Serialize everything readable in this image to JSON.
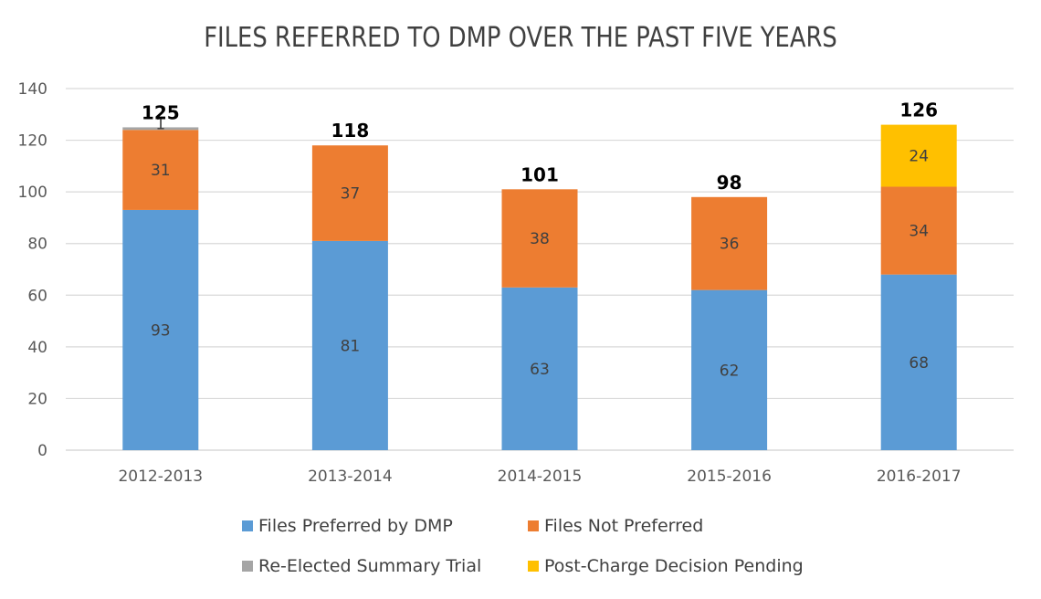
{
  "chart_data": {
    "type": "bar",
    "stacked": true,
    "title": "FILES REFERRED TO DMP OVER THE PAST FIVE YEARS",
    "xlabel": "",
    "ylabel": "",
    "ylim": [
      0,
      140
    ],
    "yticks": [
      0,
      20,
      40,
      60,
      80,
      100,
      120,
      140
    ],
    "grid": true,
    "legend_position": "bottom",
    "categories": [
      "2012-2013",
      "2013-2014",
      "2014-2015",
      "2015-2016",
      "2016-2017"
    ],
    "series": [
      {
        "name": "Files Preferred by DMP",
        "color": "#5B9BD5",
        "values": [
          93,
          81,
          63,
          62,
          68
        ]
      },
      {
        "name": "Files Not Preferred",
        "color": "#ED7D31",
        "values": [
          31,
          37,
          38,
          36,
          34
        ]
      },
      {
        "name": "Re-Elected Summary Trial",
        "color": "#A5A5A5",
        "values": [
          1,
          0,
          0,
          0,
          0
        ]
      },
      {
        "name": "Post-Charge Decision Pending",
        "color": "#FFC000",
        "values": [
          0,
          0,
          0,
          0,
          24
        ]
      }
    ],
    "totals": [
      125,
      118,
      101,
      98,
      126
    ]
  }
}
